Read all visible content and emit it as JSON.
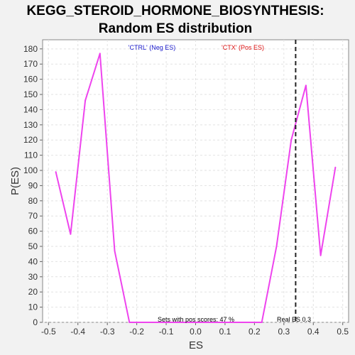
{
  "chart_data": {
    "type": "line",
    "title_line1": "KEGG_STEROID_HORMONE_BIOSYNTHESIS:",
    "title_line2": "Random ES distribution",
    "xlabel": "ES",
    "ylabel": "P(ES)",
    "xlim": [
      -0.52,
      0.52
    ],
    "ylim": [
      0,
      186
    ],
    "xticks": [
      -0.5,
      -0.4,
      -0.3,
      -0.2,
      -0.1,
      0.0,
      0.1,
      0.2,
      0.3,
      0.4,
      0.5
    ],
    "xtick_labels": [
      "-0.5",
      "-0.4",
      "-0.3",
      "-0.2",
      "-0.1",
      "0.0",
      "0.1",
      "0.2",
      "0.3",
      "0.4",
      "0.5"
    ],
    "yticks": [
      0,
      10,
      20,
      30,
      40,
      50,
      60,
      70,
      80,
      90,
      100,
      110,
      120,
      130,
      140,
      150,
      160,
      170,
      180
    ],
    "grid": true,
    "series": [
      {
        "color": "#ee44ee",
        "x": [
          -0.475,
          -0.425,
          -0.375,
          -0.325,
          -0.275,
          -0.225,
          0.225,
          0.275,
          0.325,
          0.375,
          0.425,
          0.475
        ],
        "y": [
          99,
          58,
          146,
          177,
          47,
          0,
          0,
          50,
          120,
          156,
          44,
          102
        ]
      }
    ],
    "real_es": 0.34,
    "real_es_label": "Real ES 0.3",
    "neg_label": "'CTRL' (Neg ES)",
    "pos_label": "'CTX' (Pos ES)",
    "neg_color": "#1a1acc",
    "pos_color": "#dd1111",
    "pos_scores_label": "Sets with pos scores: 47 %"
  }
}
